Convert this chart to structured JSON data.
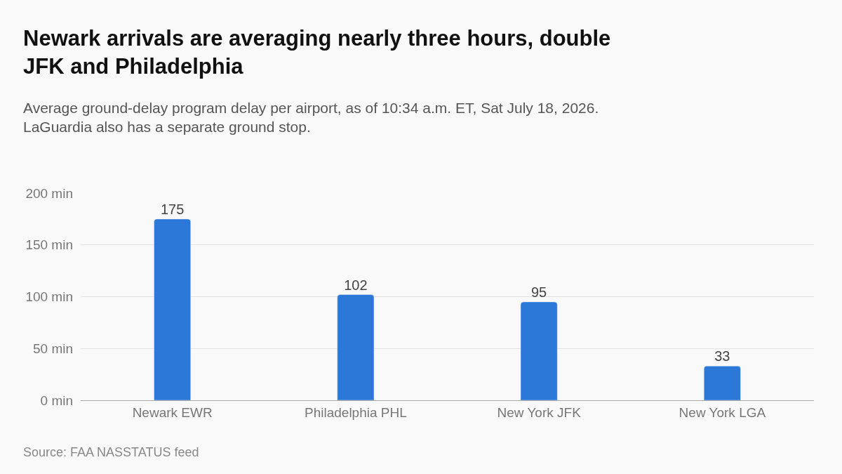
{
  "chart_data": {
    "type": "bar",
    "title": "Newark arrivals are averaging nearly three hours, double\nJFK and Philadelphia",
    "subtitle": "Average ground-delay program delay per airport, as of 10:34 a.m. ET, Sat July 18, 2026.\nLaGuardia also has a separate ground stop.",
    "categories": [
      "Newark EWR",
      "Philadelphia PHL",
      "New York JFK",
      "New York LGA"
    ],
    "values": [
      175,
      102,
      95,
      33
    ],
    "color": "#2b78d8",
    "data_labels": true,
    "ylim": [
      0,
      200
    ],
    "yticks": [
      {
        "value": 0,
        "label": "0 min"
      },
      {
        "value": 50,
        "label": "50 min"
      },
      {
        "value": 100,
        "label": "100 min"
      },
      {
        "value": 150,
        "label": "150 min"
      },
      {
        "value": 200,
        "label": "200 min"
      }
    ],
    "grid": "y",
    "annotations": [
      "Source: FAA NASSTATUS feed"
    ]
  }
}
